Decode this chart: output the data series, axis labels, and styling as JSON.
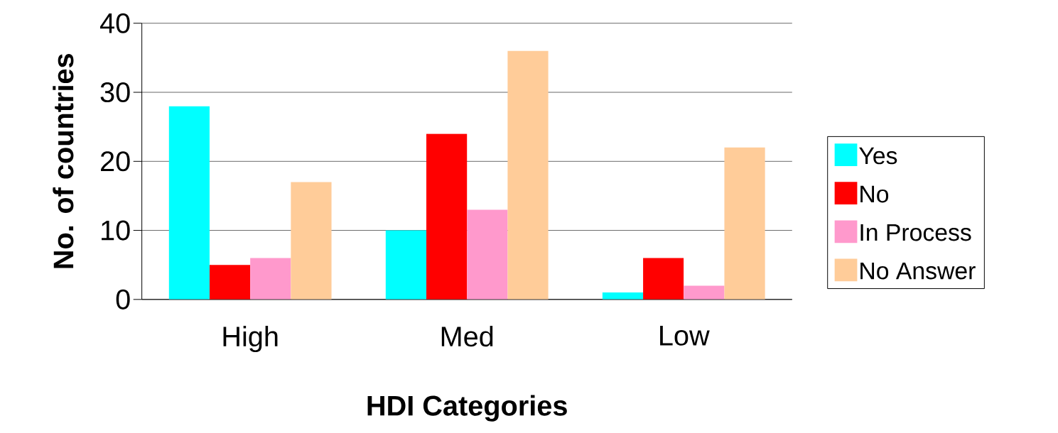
{
  "chart_data": {
    "type": "bar",
    "xlabel": "HDI Categories",
    "ylabel": "No. of countries",
    "categories": [
      "High",
      "Med",
      "Low"
    ],
    "series": [
      {
        "name": "Yes",
        "color": "#00ffff",
        "values": [
          28,
          10,
          1
        ]
      },
      {
        "name": "No",
        "color": "#ff0000",
        "values": [
          5,
          24,
          6
        ]
      },
      {
        "name": "In Process",
        "color": "#ff99cc",
        "values": [
          6,
          13,
          2
        ]
      },
      {
        "name": "No Answer",
        "color": "#ffcc99",
        "values": [
          17,
          36,
          22
        ]
      }
    ],
    "ylim": [
      0,
      40
    ],
    "yticks": [
      0,
      10,
      20,
      30,
      40
    ],
    "grid": "y",
    "legend": "right"
  }
}
